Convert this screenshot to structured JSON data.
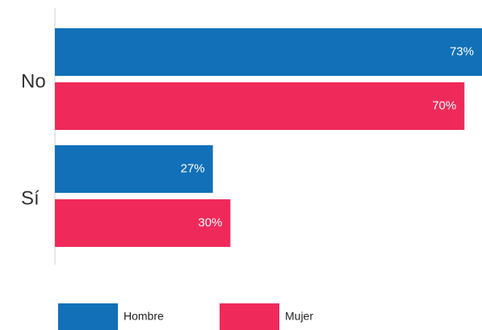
{
  "chart_data": {
    "type": "bar",
    "orientation": "horizontal",
    "categories": [
      "No",
      "Sí"
    ],
    "series": [
      {
        "name": "Hombre",
        "color": "#1170b8",
        "values": [
          73,
          27
        ],
        "value_labels": [
          "73%",
          "27%"
        ]
      },
      {
        "name": "Mujer",
        "color": "#ef2a5a",
        "values": [
          70,
          30
        ],
        "value_labels": [
          "70%",
          "30%"
        ]
      }
    ],
    "xlim": [
      0,
      73
    ],
    "legend": "bottom"
  }
}
